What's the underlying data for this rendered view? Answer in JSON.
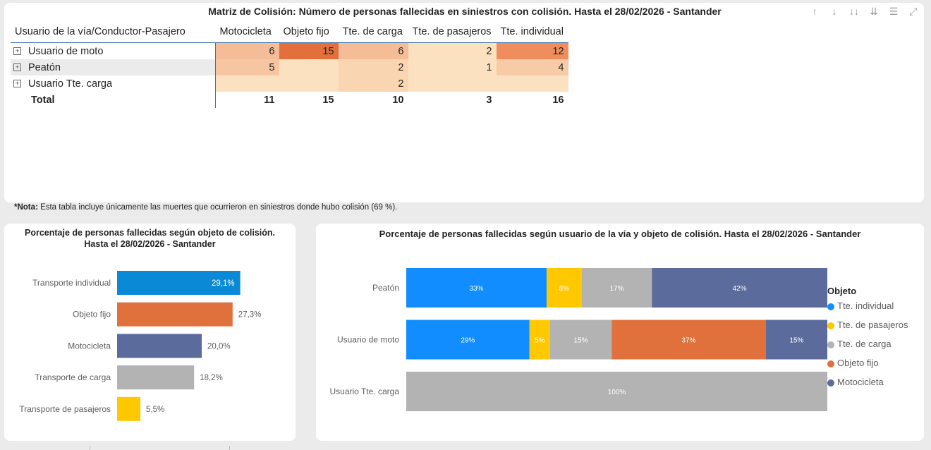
{
  "matrix": {
    "title": "Matriz de Colisión: Número de personas fallecidas en siniestros con colisión. Hasta el 28/02/2026 - Santander",
    "toolbar": [
      {
        "name": "drill-up-icon",
        "glyph": "↑"
      },
      {
        "name": "drill-down-icon",
        "glyph": "↓"
      },
      {
        "name": "expand-next-level-icon",
        "glyph": "↓↓"
      },
      {
        "name": "expand-all-icon",
        "glyph": "⇊"
      },
      {
        "name": "filter-icon",
        "glyph": "☰"
      },
      {
        "name": "focus-mode-icon",
        "glyph": "⤢"
      }
    ],
    "row_header": "Usuario de la vía/Conductor-Pasajero",
    "columns": [
      "Motocicleta",
      "Objeto fijo",
      "Tte. de carga",
      "Tte. de pasajeros",
      "Tte. individual"
    ],
    "rows": [
      {
        "label": "Usuario de moto",
        "values": [
          "6",
          "15",
          "6",
          "2",
          "12"
        ],
        "colors": [
          "#f4bd98",
          "#e3703a",
          "#f4bd98",
          "#fbe1c0",
          "#ef8d5c"
        ]
      },
      {
        "label": "Peatón",
        "values": [
          "5",
          "",
          "2",
          "1",
          "4"
        ],
        "colors": [
          "#f6c6a2",
          "#fbe1c0",
          "#f9d5b2",
          "#fbe1c0",
          "#f8cba8"
        ]
      },
      {
        "label": "Usuario Tte. carga",
        "values": [
          "",
          "",
          "2",
          "",
          ""
        ],
        "colors": [
          "#fbe1c0",
          "#fbe1c0",
          "#f9d5b2",
          "#fbe1c0",
          "#fbe1c0"
        ]
      }
    ],
    "total": {
      "label": "Total",
      "values": [
        "11",
        "15",
        "10",
        "3",
        "16"
      ]
    }
  },
  "note": {
    "bold": "*Nota:",
    "text": " Esta tabla incluye únicamente las muertes que ocurrieron en siniestros donde hubo colisión (69 %)."
  },
  "left_chart": {
    "title_line1": "Porcentaje de personas fallecidas según objeto de colisión.",
    "title_line2": "Hasta el 28/02/2026 - Santander"
  },
  "right_chart": {
    "title": "Porcentaje de personas fallecidas según usuario de la vía y objeto de colisión. Hasta el 28/02/2026 - Santander"
  },
  "legend": {
    "title": "Objeto",
    "items": [
      {
        "label": "Tte. individual",
        "color": "#118dff"
      },
      {
        "label": "Tte. de pasajeros",
        "color": "#ffc800"
      },
      {
        "label": "Tte. de carga",
        "color": "#b3b3b3"
      },
      {
        "label": "Objeto fijo",
        "color": "#e0713c"
      },
      {
        "label": "Motocicleta",
        "color": "#5b6b9c"
      }
    ]
  },
  "chart_data": [
    {
      "type": "bar",
      "orientation": "horizontal",
      "title": "Porcentaje de personas fallecidas según objeto de colisión. Hasta el 28/02/2026 - Santander",
      "categories": [
        "Transporte individual",
        "Objeto fijo",
        "Motocicleta",
        "Transporte de carga",
        "Transporte de pasajeros"
      ],
      "values": [
        29.1,
        27.3,
        20.0,
        18.2,
        5.5
      ],
      "labels": [
        "29,1%",
        "27,3%",
        "20,0%",
        "18,2%",
        "5,5%"
      ],
      "colors": [
        "#0a8ad6",
        "#e0713c",
        "#5b6b9c",
        "#b3b3b3",
        "#ffc800"
      ],
      "xlim": [
        0,
        40
      ]
    },
    {
      "type": "bar",
      "orientation": "horizontal",
      "stacked": "100%",
      "title": "Porcentaje de personas fallecidas según usuario de la vía y objeto de colisión. Hasta el 28/02/2026 - Santander",
      "categories": [
        "Peatón",
        "Usuario de moto",
        "Usuario Tte. carga"
      ],
      "series": [
        {
          "name": "Tte. individual",
          "color": "#118dff",
          "values": [
            33.33,
            29.27,
            0
          ],
          "labels": [
            "33%",
            "29%",
            ""
          ]
        },
        {
          "name": "Tte. de pasajeros",
          "color": "#ffc800",
          "values": [
            8.33,
            4.88,
            0
          ],
          "labels": [
            "8%",
            "5%",
            ""
          ]
        },
        {
          "name": "Tte. de carga",
          "color": "#b3b3b3",
          "values": [
            16.67,
            14.63,
            100
          ],
          "labels": [
            "17%",
            "15%",
            "100%"
          ]
        },
        {
          "name": "Objeto fijo",
          "color": "#e0713c",
          "values": [
            0,
            36.59,
            0
          ],
          "labels": [
            "",
            "37%",
            ""
          ]
        },
        {
          "name": "Motocicleta",
          "color": "#5b6b9c",
          "values": [
            41.67,
            14.63,
            0
          ],
          "labels": [
            "42%",
            "15%",
            ""
          ]
        }
      ],
      "legend_title": "Objeto"
    }
  ]
}
